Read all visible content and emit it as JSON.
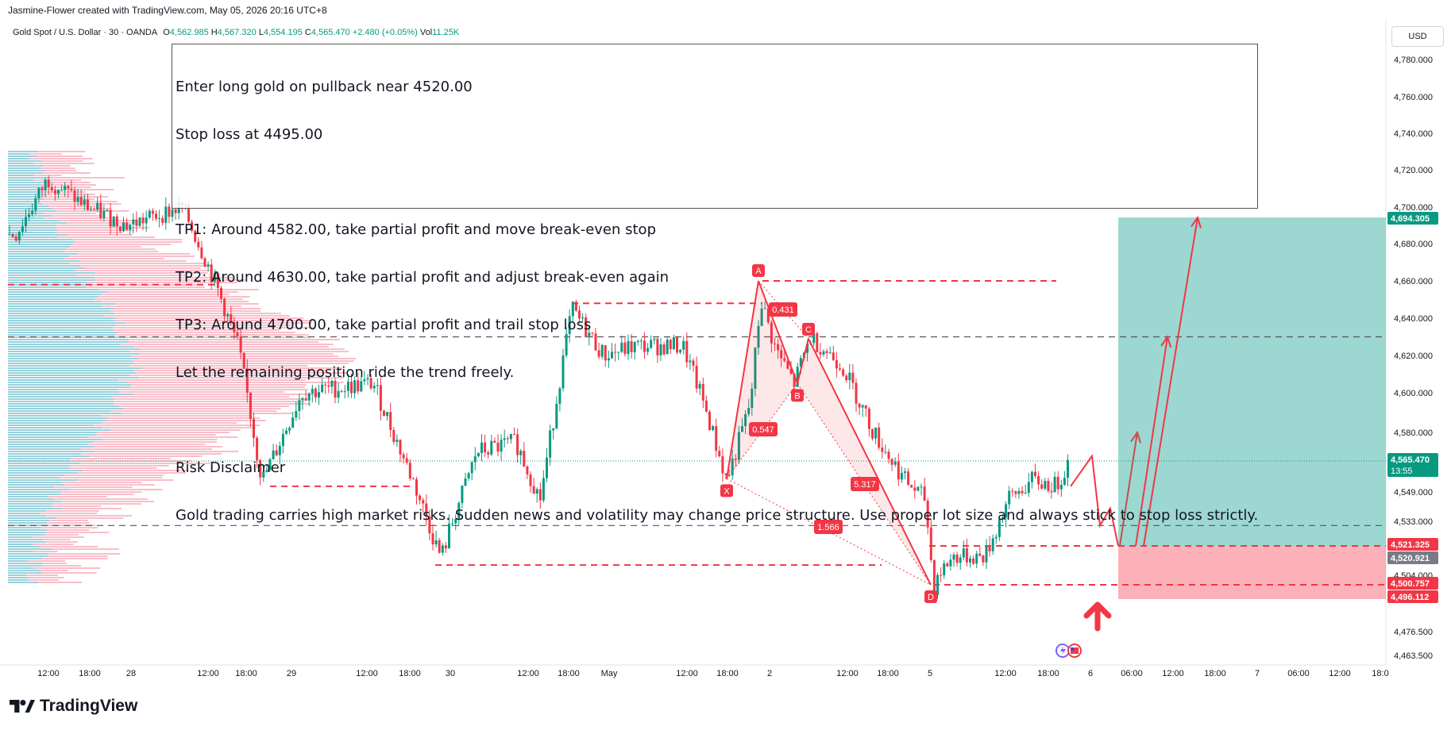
{
  "header": {
    "credit": "Jasmine-Flower created with TradingView.com, May 05, 2026 20:16 UTC+8",
    "symbol": "Gold Spot / U.S. Dollar · 30 · OANDA",
    "ohlc": {
      "o_label": "O",
      "o": "4,562.985",
      "h_label": "H",
      "h": "4,567.320",
      "l_label": "L",
      "l": "4,554.195",
      "c_label": "C",
      "c": "4,565.470",
      "change": "+2.480 (+0.05%)",
      "vol_label": "Vol",
      "vol": "11.25K"
    },
    "currency": "USD"
  },
  "note": {
    "lines": [
      "Enter long gold on pullback near 4520.00",
      "Stop loss at 4495.00",
      "",
      "TP1: Around 4582.00, take partial profit and move break-even stop",
      "TP2: Around 4630.00, take partial profit and adjust break-even again",
      "TP3: Around 4700.00, take partial profit and trail stop loss",
      "Let the remaining position ride the trend freely.",
      "",
      "Risk Disclaimer",
      "Gold trading carries high market risks. Sudden news and volatility may change price structure. Use proper lot size and always stick to stop loss strictly."
    ]
  },
  "brand": {
    "name": "TradingView"
  },
  "chart_data": {
    "type": "candlestick",
    "title": "Gold Spot / U.S. Dollar · 30 · OANDA",
    "x_ticks": [
      "12:00",
      "18:00",
      "28",
      "12:00",
      "18:00",
      "29",
      "12:00",
      "18:00",
      "30",
      "12:00",
      "18:00",
      "May",
      "12:00",
      "18:00",
      "2",
      "12:00",
      "18:00",
      "5",
      "12:00",
      "18:00",
      "6",
      "06:00",
      "12:00",
      "18:00",
      "7",
      "06:00",
      "12:00",
      "18:0"
    ],
    "y_ticks": [
      4780,
      4760,
      4740,
      4720,
      4700,
      4680,
      4660,
      4640,
      4620,
      4600,
      4580,
      4549,
      4533,
      4504,
      4476.5,
      4463.5
    ],
    "y_tick_labels": [
      "4,780.000",
      "4,760.000",
      "4,740.000",
      "4,720.000",
      "4,700.000",
      "4,680.000",
      "4,660.000",
      "4,640.000",
      "4,620.000",
      "4,600.000",
      "4,580.000",
      "4,549.000",
      "4,533.000",
      "4,504.000",
      "4,476.500",
      "4,463.500"
    ],
    "price_badges": [
      {
        "label": "4,694.305",
        "value": 4694.305,
        "color": "#089981"
      },
      {
        "label": "4,565.470",
        "value": 4565.47,
        "color": "#089981",
        "sub": "13:55"
      },
      {
        "label": "4,521.325",
        "value": 4521.325,
        "color": "#f23645"
      },
      {
        "label": "4,520.921",
        "value": 4520.921,
        "color": "#787b86"
      },
      {
        "label": "4,500.757",
        "value": 4500.757,
        "color": "#f23645"
      },
      {
        "label": "4,496.112",
        "value": 4496.112,
        "color": "#f23645"
      }
    ],
    "harmonic": {
      "points": [
        {
          "label": "X",
          "value": 4556
        },
        {
          "label": "A",
          "value": 4660
        },
        {
          "label": "B",
          "value": 4605
        },
        {
          "label": "C",
          "value": 4629
        },
        {
          "label": "D",
          "value": 4501
        }
      ],
      "ratios": [
        "0.431",
        "0.547",
        "5.317",
        "1.566"
      ]
    },
    "levels": [
      4658,
      4648,
      4630,
      4552,
      4531,
      4510,
      4660,
      4501
    ],
    "position": {
      "entry": 4520.921,
      "target": 4694.305,
      "stop": 4496.112,
      "take_profit_color": "#26a69a",
      "stop_color": "#f7525f"
    }
  }
}
